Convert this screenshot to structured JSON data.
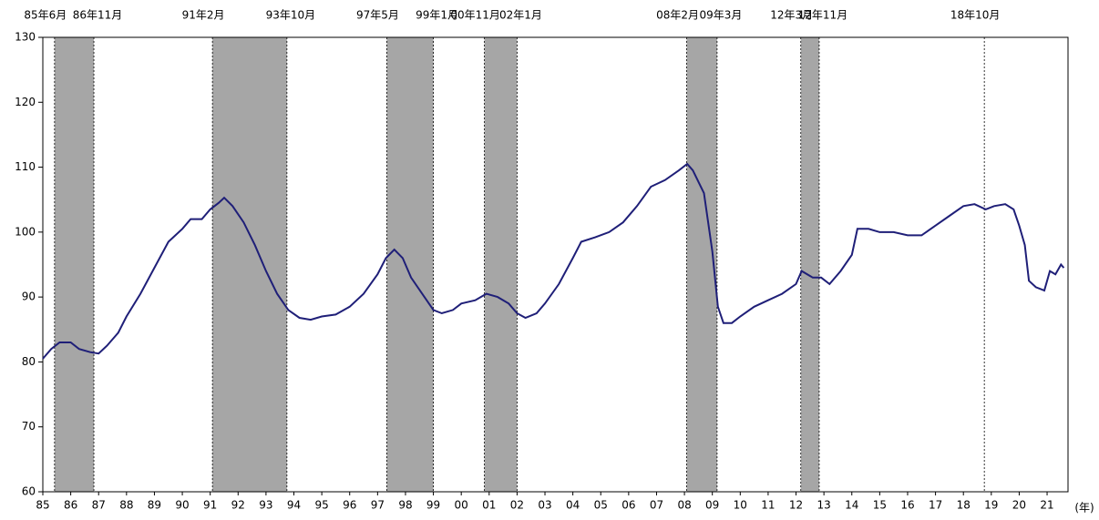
{
  "chart_data": {
    "type": "line",
    "xlim": [
      1985,
      2021.75
    ],
    "ylim": [
      60,
      130
    ],
    "yticks": [
      60,
      70,
      80,
      90,
      100,
      110,
      120,
      130
    ],
    "xticks": [
      {
        "value": 1985,
        "label": "85"
      },
      {
        "value": 1986,
        "label": "86"
      },
      {
        "value": 1987,
        "label": "87"
      },
      {
        "value": 1988,
        "label": "88"
      },
      {
        "value": 1989,
        "label": "89"
      },
      {
        "value": 1990,
        "label": "90"
      },
      {
        "value": 1991,
        "label": "91"
      },
      {
        "value": 1992,
        "label": "92"
      },
      {
        "value": 1993,
        "label": "93"
      },
      {
        "value": 1994,
        "label": "94"
      },
      {
        "value": 1995,
        "label": "95"
      },
      {
        "value": 1996,
        "label": "96"
      },
      {
        "value": 1997,
        "label": "97"
      },
      {
        "value": 1998,
        "label": "98"
      },
      {
        "value": 1999,
        "label": "99"
      },
      {
        "value": 2000,
        "label": "00"
      },
      {
        "value": 2001,
        "label": "01"
      },
      {
        "value": 2002,
        "label": "02"
      },
      {
        "value": 2003,
        "label": "03"
      },
      {
        "value": 2004,
        "label": "04"
      },
      {
        "value": 2005,
        "label": "05"
      },
      {
        "value": 2006,
        "label": "06"
      },
      {
        "value": 2007,
        "label": "07"
      },
      {
        "value": 2008,
        "label": "08"
      },
      {
        "value": 2009,
        "label": "09"
      },
      {
        "value": 2010,
        "label": "10"
      },
      {
        "value": 2011,
        "label": "11"
      },
      {
        "value": 2012,
        "label": "12"
      },
      {
        "value": 2013,
        "label": "13"
      },
      {
        "value": 2014,
        "label": "14"
      },
      {
        "value": 2015,
        "label": "15"
      },
      {
        "value": 2016,
        "label": "16"
      },
      {
        "value": 2017,
        "label": "17"
      },
      {
        "value": 2018,
        "label": "18"
      },
      {
        "value": 2019,
        "label": "19"
      },
      {
        "value": 2020,
        "label": "20"
      },
      {
        "value": 2021,
        "label": "21"
      }
    ],
    "x_unit": "(年)",
    "bands": [
      {
        "start": 1985.42,
        "end": 1986.83,
        "start_label": "85年6月",
        "end_label": "86年11月"
      },
      {
        "start": 1991.08,
        "end": 1993.75,
        "start_label": "91年2月",
        "end_label": "93年10月"
      },
      {
        "start": 1997.33,
        "end": 1999.0,
        "start_label": "97年5月",
        "end_label": "99年1月"
      },
      {
        "start": 2000.83,
        "end": 2002.0,
        "start_label": "00年11月",
        "end_label": "02年1月"
      },
      {
        "start": 2008.08,
        "end": 2009.17,
        "start_label": "08年2月",
        "end_label": "09年3月"
      },
      {
        "start": 2012.17,
        "end": 2012.83,
        "start_label": "12年3月",
        "end_label": "12年11月"
      },
      {
        "start": 2018.75,
        "start_label": "18年10月"
      }
    ],
    "band_color": "#a6a6a6",
    "x": [
      1985.0,
      1985.3,
      1985.6,
      1986.0,
      1986.3,
      1986.7,
      1987.0,
      1987.3,
      1987.7,
      1988.0,
      1988.5,
      1989.0,
      1989.5,
      1990.0,
      1990.3,
      1990.7,
      1991.0,
      1991.3,
      1991.5,
      1991.8,
      1992.2,
      1992.6,
      1993.0,
      1993.4,
      1993.8,
      1994.2,
      1994.6,
      1995.0,
      1995.5,
      1996.0,
      1996.5,
      1997.0,
      1997.3,
      1997.6,
      1997.9,
      1998.2,
      1998.6,
      1999.0,
      1999.3,
      1999.7,
      2000.0,
      2000.5,
      2000.9,
      2001.3,
      2001.7,
      2002.0,
      2002.3,
      2002.7,
      2003.0,
      2003.5,
      2004.0,
      2004.3,
      2004.8,
      2005.3,
      2005.8,
      2006.3,
      2006.8,
      2007.3,
      2007.8,
      2008.1,
      2008.3,
      2008.7,
      2009.0,
      2009.2,
      2009.4,
      2009.7,
      2010.0,
      2010.5,
      2011.0,
      2011.5,
      2012.0,
      2012.2,
      2012.6,
      2012.9,
      2013.2,
      2013.6,
      2014.0,
      2014.2,
      2014.6,
      2015.0,
      2015.5,
      2016.0,
      2016.5,
      2017.0,
      2017.5,
      2018.0,
      2018.4,
      2018.8,
      2019.1,
      2019.5,
      2019.8,
      2020.0,
      2020.2,
      2020.35,
      2020.6,
      2020.9,
      2021.1,
      2021.3,
      2021.5,
      2021.6
    ],
    "series": [
      {
        "color": "#1f1f78",
        "values": [
          80.5,
          82,
          83,
          83,
          82,
          81.5,
          81.3,
          82.5,
          84.5,
          87,
          90.5,
          94.5,
          98.5,
          100.5,
          102,
          102,
          103.5,
          104.5,
          105.3,
          104,
          101.5,
          98,
          94,
          90.5,
          88,
          86.8,
          86.5,
          87,
          87.3,
          88.5,
          90.5,
          93.5,
          96,
          97.3,
          96,
          93,
          90.5,
          88,
          87.5,
          88,
          89,
          89.5,
          90.5,
          90,
          89,
          87.5,
          86.8,
          87.5,
          89,
          92,
          96,
          98.5,
          99.2,
          100,
          101.5,
          104,
          107,
          108,
          109.5,
          110.5,
          109.5,
          106,
          97,
          88.5,
          86,
          86,
          87,
          88.5,
          89.5,
          90.5,
          92,
          94,
          93,
          93,
          92,
          94,
          96.5,
          100.5,
          100.5,
          100,
          100,
          99.5,
          99.5,
          101,
          102.5,
          104,
          104.3,
          103.5,
          104,
          104.3,
          103.5,
          101,
          98,
          92.5,
          91.5,
          91,
          94,
          93.5,
          95,
          94.5
        ]
      }
    ]
  }
}
